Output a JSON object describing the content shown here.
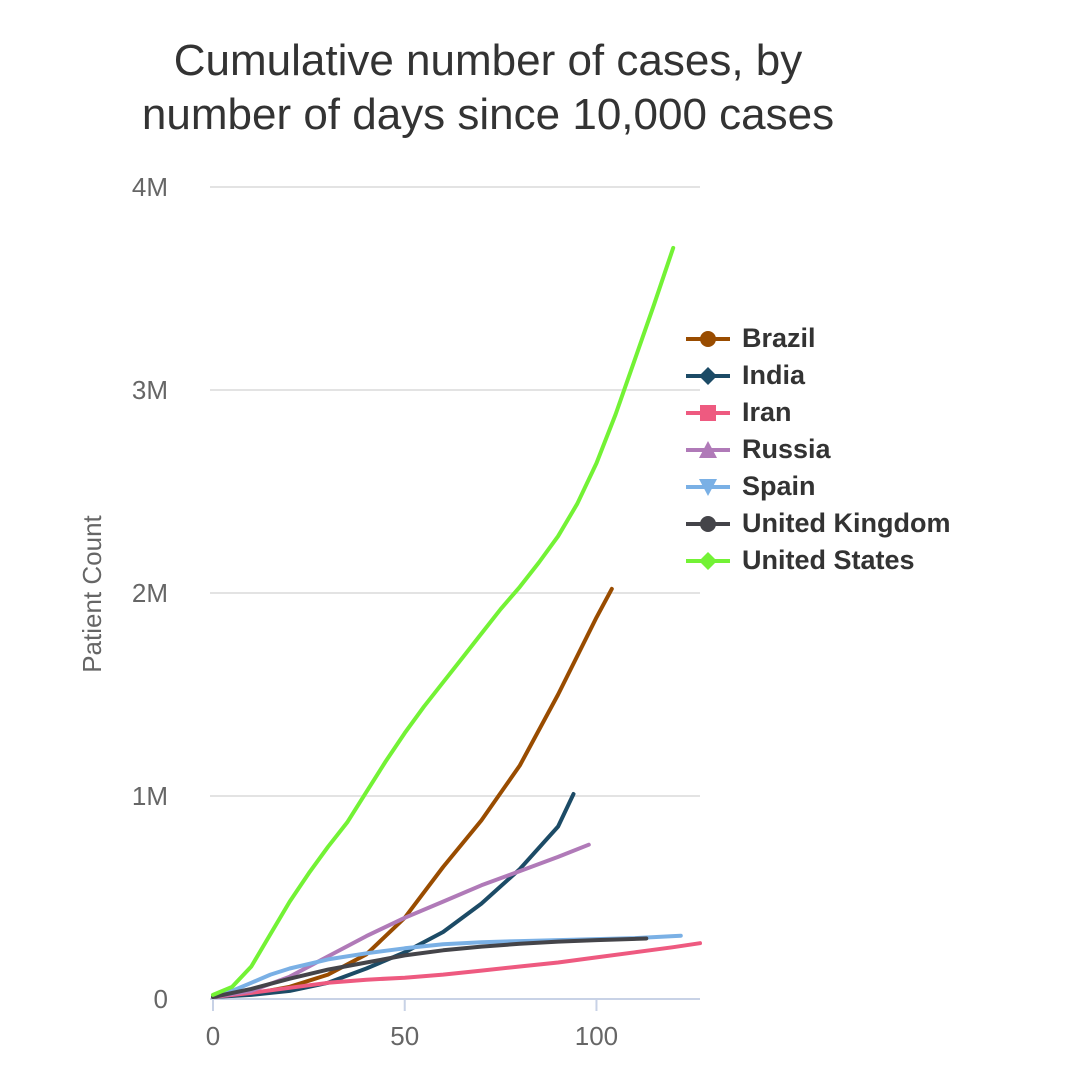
{
  "chart_data": {
    "type": "line",
    "title_lines": [
      "Cumulative number of cases, by",
      "number of days since 10,000 cases"
    ],
    "xlabel": "",
    "ylabel": "Patient Count",
    "xlim": [
      0,
      127
    ],
    "ylim": [
      0,
      4000000
    ],
    "x_ticks": [
      {
        "value": 0,
        "label": "0"
      },
      {
        "value": 50,
        "label": "50"
      },
      {
        "value": 100,
        "label": "100"
      }
    ],
    "y_ticks": [
      {
        "value": 0,
        "label": "0"
      },
      {
        "value": 1000000,
        "label": "1M"
      },
      {
        "value": 2000000,
        "label": "2M"
      },
      {
        "value": 3000000,
        "label": "3M"
      },
      {
        "value": 4000000,
        "label": "4M"
      }
    ],
    "grid": "horizontal",
    "legend_position": "right",
    "series": [
      {
        "name": "Brazil",
        "color": "#994C00",
        "marker": "circle",
        "x": [
          0,
          10,
          20,
          30,
          40,
          50,
          60,
          70,
          80,
          90,
          100,
          104
        ],
        "y": [
          10000,
          25000,
          60000,
          120000,
          220000,
          400000,
          650000,
          880000,
          1150000,
          1500000,
          1880000,
          2020000
        ]
      },
      {
        "name": "India",
        "color": "#1C4B66",
        "marker": "diamond",
        "x": [
          0,
          10,
          20,
          30,
          40,
          50,
          60,
          70,
          80,
          90,
          94
        ],
        "y": [
          10000,
          20000,
          40000,
          80000,
          150000,
          230000,
          330000,
          470000,
          640000,
          850000,
          1010000
        ]
      },
      {
        "name": "Iran",
        "color": "#EE5A80",
        "marker": "square",
        "x": [
          0,
          10,
          20,
          30,
          40,
          50,
          60,
          70,
          80,
          90,
          100,
          110,
          120,
          127
        ],
        "y": [
          10000,
          30000,
          55000,
          80000,
          95000,
          105000,
          120000,
          140000,
          160000,
          180000,
          205000,
          230000,
          255000,
          275000
        ]
      },
      {
        "name": "Russia",
        "color": "#B07AB8",
        "marker": "triangle-up",
        "x": [
          0,
          10,
          20,
          30,
          40,
          50,
          60,
          70,
          80,
          90,
          98
        ],
        "y": [
          10000,
          40000,
          110000,
          210000,
          310000,
          400000,
          480000,
          560000,
          630000,
          700000,
          760000
        ]
      },
      {
        "name": "Spain",
        "color": "#7AB0E5",
        "marker": "triangle-down",
        "x": [
          0,
          5,
          10,
          15,
          20,
          30,
          40,
          50,
          60,
          70,
          80,
          90,
          100,
          110,
          120,
          122
        ],
        "y": [
          10000,
          40000,
          80000,
          120000,
          150000,
          195000,
          225000,
          250000,
          270000,
          280000,
          285000,
          290000,
          295000,
          300000,
          310000,
          312000
        ]
      },
      {
        "name": "United Kingdom",
        "color": "#444449",
        "marker": "circle",
        "x": [
          0,
          10,
          20,
          30,
          40,
          50,
          60,
          70,
          80,
          90,
          100,
          113
        ],
        "y": [
          10000,
          50000,
          100000,
          145000,
          180000,
          215000,
          240000,
          258000,
          272000,
          283000,
          290000,
          298000
        ]
      },
      {
        "name": "United States",
        "color": "#73F235",
        "marker": "diamond",
        "x": [
          0,
          5,
          10,
          15,
          20,
          25,
          30,
          35,
          40,
          45,
          50,
          55,
          60,
          65,
          70,
          75,
          80,
          85,
          90,
          95,
          100,
          105,
          110,
          115,
          120
        ],
        "y": [
          20000,
          60000,
          160000,
          320000,
          480000,
          620000,
          750000,
          870000,
          1020000,
          1170000,
          1310000,
          1440000,
          1560000,
          1680000,
          1800000,
          1920000,
          2030000,
          2150000,
          2280000,
          2440000,
          2640000,
          2880000,
          3150000,
          3420000,
          3700000
        ]
      }
    ]
  }
}
